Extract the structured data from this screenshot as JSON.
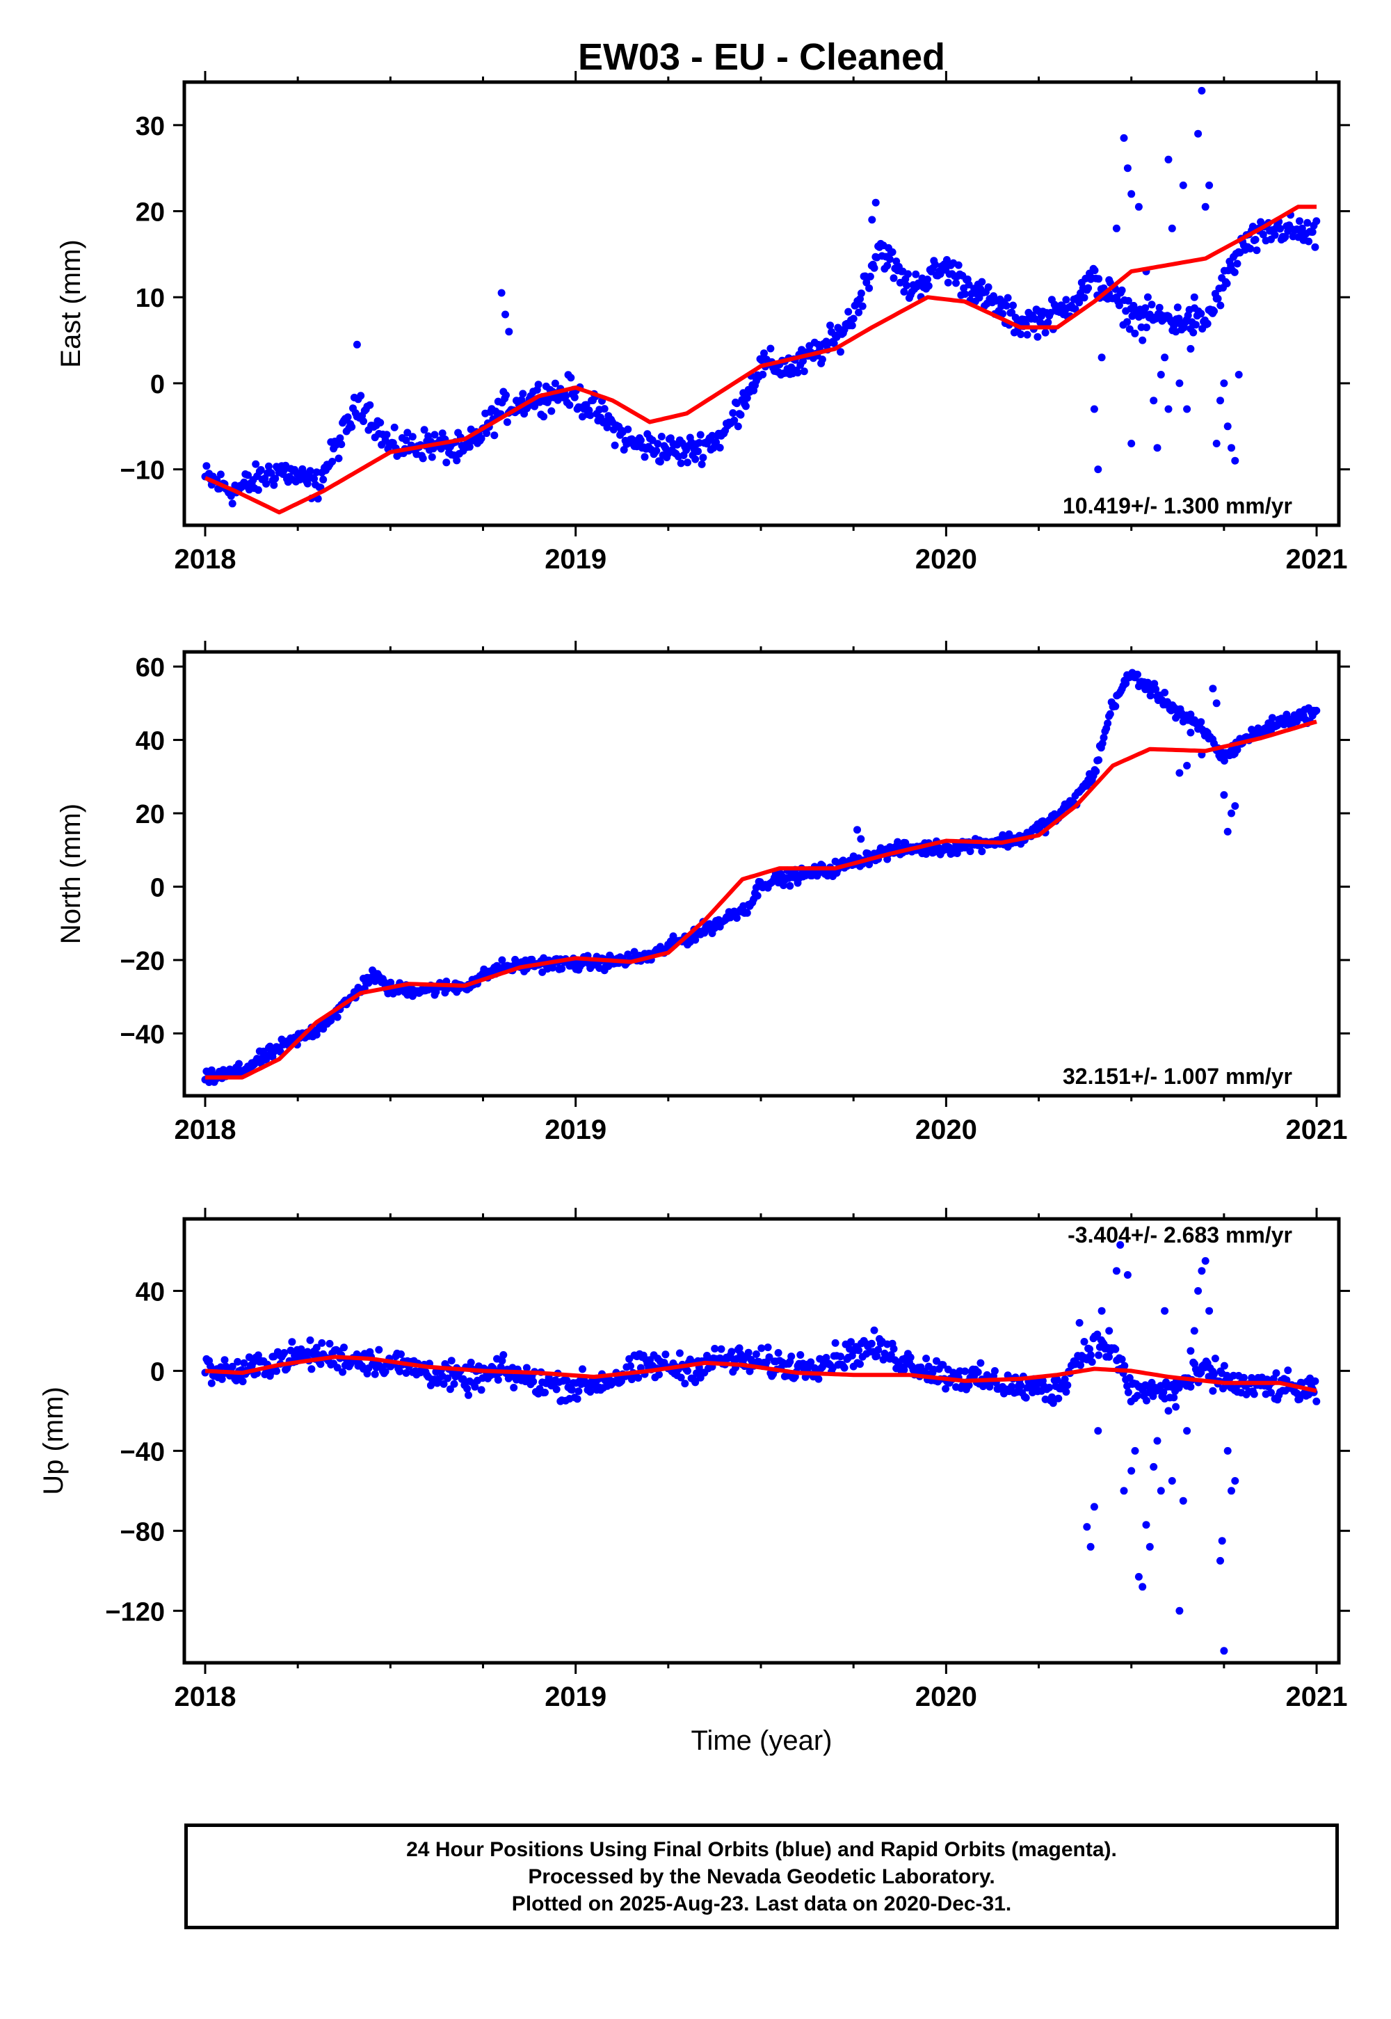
{
  "title": "EW03  - EU - Cleaned",
  "colors": {
    "final_orbits": "#0000ff",
    "model": "#ff0000",
    "axes": "#000000"
  },
  "chart_data": [
    {
      "type": "scatter",
      "panel": "east",
      "ylabel": "East (mm)",
      "xlabel": "",
      "xlim": [
        2018.0,
        2021.06
      ],
      "ylim": [
        -16.5,
        35
      ],
      "x_ticks": [
        "2018",
        "2019",
        "2020",
        "2021"
      ],
      "y_ticks": [
        "30",
        "20",
        "10",
        "0",
        "−10"
      ],
      "y_tick_values": [
        30,
        20,
        10,
        0,
        -10
      ],
      "rate_label": "10.419+/- 1.300 mm/yr",
      "model_series": [
        [
          2018.0,
          -11
        ],
        [
          2018.08,
          -12.5
        ],
        [
          2018.2,
          -15
        ],
        [
          2018.32,
          -12.5
        ],
        [
          2018.5,
          -8
        ],
        [
          2018.7,
          -6.5
        ],
        [
          2018.9,
          -1.5
        ],
        [
          2019.0,
          -0.5
        ],
        [
          2019.1,
          -2
        ],
        [
          2019.2,
          -4.5
        ],
        [
          2019.3,
          -3.5
        ],
        [
          2019.5,
          2
        ],
        [
          2019.7,
          4
        ],
        [
          2019.8,
          6.5
        ],
        [
          2019.95,
          10
        ],
        [
          2020.05,
          9.5
        ],
        [
          2020.2,
          6.5
        ],
        [
          2020.3,
          6.5
        ],
        [
          2020.4,
          9.5
        ],
        [
          2020.5,
          13
        ],
        [
          2020.7,
          14.5
        ],
        [
          2020.85,
          18
        ],
        [
          2020.95,
          20.5
        ],
        [
          2021.0,
          20.5
        ]
      ],
      "point_trend": [
        [
          2018.0,
          -11
        ],
        [
          2018.08,
          -12.5
        ],
        [
          2018.2,
          -10
        ],
        [
          2018.3,
          -12
        ],
        [
          2018.42,
          -2
        ],
        [
          2018.5,
          -7.5
        ],
        [
          2018.6,
          -7
        ],
        [
          2018.7,
          -8
        ],
        [
          2018.8,
          -3
        ],
        [
          2018.9,
          -1.5
        ],
        [
          2018.98,
          -1
        ],
        [
          2019.05,
          -3
        ],
        [
          2019.15,
          -7
        ],
        [
          2019.3,
          -8
        ],
        [
          2019.4,
          -6
        ],
        [
          2019.5,
          2
        ],
        [
          2019.6,
          2
        ],
        [
          2019.7,
          5
        ],
        [
          2019.75,
          8
        ],
        [
          2019.82,
          16
        ],
        [
          2019.9,
          11
        ],
        [
          2020.0,
          13.5
        ],
        [
          2020.1,
          10
        ],
        [
          2020.2,
          7
        ],
        [
          2020.3,
          8
        ],
        [
          2020.4,
          12
        ],
        [
          2020.5,
          8
        ],
        [
          2020.7,
          7
        ],
        [
          2020.8,
          16
        ],
        [
          2020.9,
          18
        ],
        [
          2021.0,
          17
        ]
      ],
      "point_spread": 1.5,
      "outliers": [
        [
          2018.41,
          4.5
        ],
        [
          2018.8,
          10.5
        ],
        [
          2018.81,
          8
        ],
        [
          2018.82,
          6
        ],
        [
          2019.81,
          21
        ],
        [
          2019.8,
          19
        ],
        [
          2020.48,
          28.5
        ],
        [
          2020.49,
          25
        ],
        [
          2020.5,
          22
        ],
        [
          2020.52,
          20.5
        ],
        [
          2020.46,
          18
        ],
        [
          2020.44,
          12
        ],
        [
          2020.41,
          -10
        ],
        [
          2020.4,
          -3
        ],
        [
          2020.42,
          3
        ],
        [
          2020.6,
          26
        ],
        [
          2020.61,
          18
        ],
        [
          2020.64,
          23
        ],
        [
          2020.68,
          29
        ],
        [
          2020.69,
          34
        ],
        [
          2020.7,
          20.5
        ],
        [
          2020.71,
          23
        ],
        [
          2020.72,
          8.5
        ],
        [
          2020.58,
          1
        ],
        [
          2020.56,
          -2
        ],
        [
          2020.55,
          8
        ],
        [
          2020.62,
          6
        ],
        [
          2020.63,
          0
        ],
        [
          2020.65,
          -3
        ],
        [
          2020.66,
          4
        ],
        [
          2020.67,
          10
        ],
        [
          2020.74,
          -2
        ],
        [
          2020.73,
          -7
        ],
        [
          2020.75,
          0
        ],
        [
          2020.76,
          -5
        ],
        [
          2020.77,
          -7.5
        ],
        [
          2020.78,
          -9
        ],
        [
          2020.79,
          1
        ],
        [
          2020.5,
          -7
        ],
        [
          2020.53,
          5
        ],
        [
          2020.57,
          -7.5
        ],
        [
          2020.59,
          3
        ],
        [
          2020.6,
          -3
        ],
        [
          2020.54,
          13
        ]
      ]
    },
    {
      "type": "scatter",
      "panel": "north",
      "ylabel": "North (mm)",
      "xlabel": "",
      "xlim": [
        2018.0,
        2021.06
      ],
      "ylim": [
        -57,
        64
      ],
      "x_ticks": [
        "2018",
        "2019",
        "2020",
        "2021"
      ],
      "y_ticks": [
        "60",
        "40",
        "20",
        "0",
        "−20",
        "−40"
      ],
      "y_tick_values": [
        60,
        40,
        20,
        0,
        -20,
        -40
      ],
      "rate_label": "32.151+/- 1.007 mm/yr",
      "model_series": [
        [
          2018.0,
          -52
        ],
        [
          2018.1,
          -52
        ],
        [
          2018.2,
          -47
        ],
        [
          2018.3,
          -37
        ],
        [
          2018.42,
          -29
        ],
        [
          2018.55,
          -26.5
        ],
        [
          2018.7,
          -27
        ],
        [
          2018.85,
          -22
        ],
        [
          2019.0,
          -19.5
        ],
        [
          2019.15,
          -20.5
        ],
        [
          2019.25,
          -18
        ],
        [
          2019.35,
          -9
        ],
        [
          2019.45,
          2
        ],
        [
          2019.55,
          5
        ],
        [
          2019.7,
          5
        ],
        [
          2019.85,
          9
        ],
        [
          2020.0,
          12.5
        ],
        [
          2020.15,
          12
        ],
        [
          2020.25,
          14
        ],
        [
          2020.35,
          22
        ],
        [
          2020.45,
          33
        ],
        [
          2020.55,
          37.5
        ],
        [
          2020.7,
          37
        ],
        [
          2020.85,
          40.5
        ],
        [
          2021.0,
          45
        ]
      ],
      "point_trend": [
        [
          2018.0,
          -52.5
        ],
        [
          2018.1,
          -50
        ],
        [
          2018.2,
          -44
        ],
        [
          2018.3,
          -39
        ],
        [
          2018.38,
          -32
        ],
        [
          2018.45,
          -24
        ],
        [
          2018.5,
          -28
        ],
        [
          2018.6,
          -28
        ],
        [
          2018.7,
          -27
        ],
        [
          2018.8,
          -22
        ],
        [
          2018.9,
          -21
        ],
        [
          2019.0,
          -21
        ],
        [
          2019.1,
          -20.5
        ],
        [
          2019.2,
          -19
        ],
        [
          2019.3,
          -14
        ],
        [
          2019.4,
          -9
        ],
        [
          2019.47,
          -5
        ],
        [
          2019.5,
          1
        ],
        [
          2019.6,
          3
        ],
        [
          2019.7,
          5
        ],
        [
          2019.82,
          9
        ],
        [
          2019.9,
          10.5
        ],
        [
          2020.0,
          10.5
        ],
        [
          2020.1,
          12
        ],
        [
          2020.2,
          13
        ],
        [
          2020.3,
          19
        ],
        [
          2020.35,
          24
        ],
        [
          2020.4,
          31
        ],
        [
          2020.45,
          50
        ],
        [
          2020.5,
          58
        ],
        [
          2020.6,
          50
        ],
        [
          2020.7,
          42
        ],
        [
          2020.75,
          35
        ],
        [
          2020.8,
          40
        ],
        [
          2020.9,
          45
        ],
        [
          2021.0,
          47.5
        ]
      ],
      "point_spread": 1.6,
      "outliers": [
        [
          2019.76,
          15.5
        ],
        [
          2019.77,
          13
        ],
        [
          2020.76,
          15
        ],
        [
          2020.77,
          20
        ],
        [
          2020.78,
          22
        ],
        [
          2020.75,
          25
        ],
        [
          2020.62,
          46
        ],
        [
          2020.64,
          45
        ],
        [
          2020.66,
          42
        ],
        [
          2020.73,
          50
        ],
        [
          2020.72,
          54
        ],
        [
          2020.68,
          43
        ],
        [
          2020.69,
          36
        ],
        [
          2020.65,
          33
        ],
        [
          2020.63,
          31
        ]
      ]
    },
    {
      "type": "scatter",
      "panel": "up",
      "ylabel": "Up (mm)",
      "xlabel": "Time (year)",
      "xlim": [
        2018.0,
        2021.06
      ],
      "ylim": [
        -146,
        76
      ],
      "x_ticks": [
        "2018",
        "2019",
        "2020",
        "2021"
      ],
      "y_ticks": [
        "40",
        "0",
        "−40",
        "−80",
        "−120"
      ],
      "y_tick_values": [
        40,
        0,
        -40,
        -80,
        -120
      ],
      "rate_label": "-3.404+/- 2.683 mm/yr",
      "model_series": [
        [
          2018.0,
          0
        ],
        [
          2018.1,
          -1
        ],
        [
          2018.2,
          3
        ],
        [
          2018.35,
          7
        ],
        [
          2018.45,
          6
        ],
        [
          2018.6,
          2
        ],
        [
          2018.75,
          0
        ],
        [
          2018.9,
          -1
        ],
        [
          2019.05,
          -3
        ],
        [
          2019.2,
          0
        ],
        [
          2019.35,
          4
        ],
        [
          2019.45,
          3
        ],
        [
          2019.6,
          -1
        ],
        [
          2019.75,
          -2
        ],
        [
          2019.9,
          -2
        ],
        [
          2020.05,
          -5
        ],
        [
          2020.2,
          -4
        ],
        [
          2020.3,
          -2
        ],
        [
          2020.4,
          1
        ],
        [
          2020.5,
          0
        ],
        [
          2020.6,
          -3
        ],
        [
          2020.75,
          -6
        ],
        [
          2020.9,
          -6
        ],
        [
          2021.0,
          -10
        ]
      ],
      "point_trend": [
        [
          2018.0,
          1
        ],
        [
          2018.1,
          -1
        ],
        [
          2018.2,
          6
        ],
        [
          2018.3,
          8
        ],
        [
          2018.4,
          6
        ],
        [
          2018.5,
          4
        ],
        [
          2018.6,
          0
        ],
        [
          2018.7,
          -5
        ],
        [
          2018.8,
          0
        ],
        [
          2018.9,
          -6
        ],
        [
          2019.0,
          -8
        ],
        [
          2019.1,
          -4
        ],
        [
          2019.2,
          3
        ],
        [
          2019.3,
          1
        ],
        [
          2019.4,
          6
        ],
        [
          2019.5,
          4
        ],
        [
          2019.6,
          2
        ],
        [
          2019.7,
          6
        ],
        [
          2019.8,
          12
        ],
        [
          2019.9,
          4
        ],
        [
          2020.0,
          -2
        ],
        [
          2020.1,
          -5
        ],
        [
          2020.2,
          -8
        ],
        [
          2020.3,
          -10
        ],
        [
          2020.35,
          5
        ],
        [
          2020.4,
          14
        ],
        [
          2020.45,
          10
        ],
        [
          2020.5,
          -10
        ],
        [
          2020.6,
          -10
        ],
        [
          2020.7,
          0
        ],
        [
          2020.8,
          -8
        ],
        [
          2020.9,
          -8
        ],
        [
          2021.0,
          -11
        ]
      ],
      "point_spread": 6,
      "outliers": [
        [
          2020.38,
          -78
        ],
        [
          2020.39,
          -88
        ],
        [
          2020.4,
          -68
        ],
        [
          2020.41,
          -30
        ],
        [
          2020.44,
          20
        ],
        [
          2020.46,
          50
        ],
        [
          2020.47,
          63
        ],
        [
          2020.49,
          48
        ],
        [
          2020.51,
          -40
        ],
        [
          2020.52,
          -103
        ],
        [
          2020.53,
          -108
        ],
        [
          2020.54,
          -77
        ],
        [
          2020.55,
          -88
        ],
        [
          2020.57,
          -35
        ],
        [
          2020.58,
          -60
        ],
        [
          2020.59,
          30
        ],
        [
          2020.6,
          -20
        ],
        [
          2020.61,
          -55
        ],
        [
          2020.63,
          -120
        ],
        [
          2020.64,
          -65
        ],
        [
          2020.65,
          -30
        ],
        [
          2020.66,
          -8
        ],
        [
          2020.67,
          20
        ],
        [
          2020.68,
          40
        ],
        [
          2020.69,
          50
        ],
        [
          2020.7,
          55
        ],
        [
          2020.71,
          30
        ],
        [
          2020.74,
          -95
        ],
        [
          2020.745,
          -85
        ],
        [
          2020.75,
          -140
        ],
        [
          2020.76,
          -40
        ],
        [
          2020.77,
          -60
        ],
        [
          2020.78,
          -55
        ],
        [
          2020.56,
          -48
        ],
        [
          2020.62,
          -18
        ],
        [
          2020.5,
          -50
        ],
        [
          2020.48,
          -60
        ],
        [
          2020.72,
          -10
        ],
        [
          2020.66,
          10
        ],
        [
          2020.42,
          30
        ],
        [
          2020.36,
          24
        ]
      ]
    }
  ],
  "footer": {
    "line1": "24 Hour Positions Using Final Orbits (blue) and Rapid Orbits (magenta).",
    "line2": "Processed by the Nevada Geodetic Laboratory.",
    "line3": "Plotted on 2025-Aug-23. Last data on 2020-Dec-31."
  }
}
